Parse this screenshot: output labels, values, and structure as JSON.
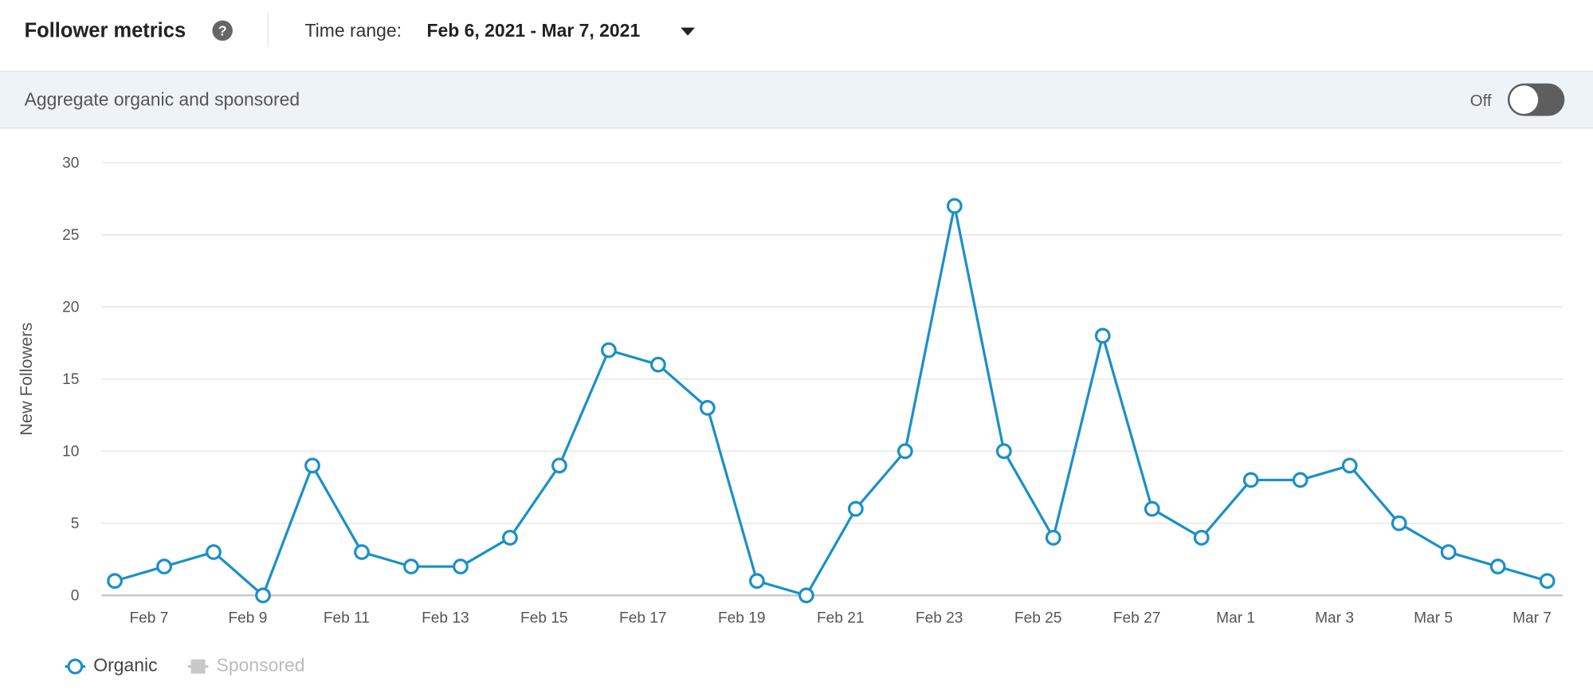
{
  "header": {
    "title": "Follower metrics",
    "time_range_label": "Time range:",
    "time_range_value": "Feb 6, 2021 - Mar 7, 2021"
  },
  "aggregate": {
    "label": "Aggregate organic and sponsored",
    "toggle_state": "Off"
  },
  "chart_data": {
    "type": "line",
    "y_label": "New Followers",
    "categories": [
      null,
      "Feb 7",
      null,
      "Feb 9",
      null,
      "Feb 11",
      null,
      "Feb 13",
      null,
      "Feb 15",
      null,
      "Feb 17",
      null,
      "Feb 19",
      null,
      "Feb 21",
      null,
      "Feb 23",
      null,
      "Feb 25",
      null,
      "Feb 27",
      null,
      "Mar 1",
      null,
      "Mar 3",
      null,
      "Mar 5",
      null,
      "Mar 7"
    ],
    "series": [
      {
        "name": "Organic",
        "color": "#1a8fc9",
        "values": [
          1,
          2,
          3,
          0,
          9,
          3,
          2,
          2,
          4,
          9,
          17,
          16,
          13,
          1,
          0,
          6,
          10,
          27,
          10,
          4,
          18,
          6,
          4,
          8,
          8,
          9,
          5,
          3,
          2,
          1
        ]
      },
      {
        "name": "Sponsored",
        "color": "#c8c8c8",
        "hidden": true,
        "values": [
          null,
          null,
          null,
          null,
          null,
          null,
          null,
          null,
          null,
          null,
          null,
          null,
          null,
          null,
          null,
          null,
          null,
          null,
          null,
          null,
          null,
          null,
          null,
          null,
          null,
          null,
          null,
          null,
          null,
          null
        ]
      }
    ],
    "ylim": [
      0,
      30
    ],
    "yticks": [
      0,
      5,
      10,
      15,
      20,
      25,
      30
    ],
    "grid": true
  }
}
